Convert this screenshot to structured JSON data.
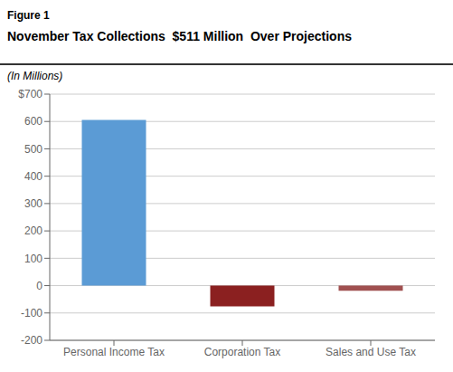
{
  "chart_data": {
    "type": "bar",
    "title": "November Tax Collections  $511 Million  Over Projections",
    "subtitle": "(In Millions)",
    "annotations": [
      "Figure 1"
    ],
    "categories": [
      "Personal Income Tax",
      "Corporation Tax",
      "Sales and Use Tax"
    ],
    "values": [
      606,
      -76,
      -19
    ],
    "colors": [
      "#5B9BD5",
      "#8B2020",
      "#A05050"
    ],
    "ylim": [
      -200,
      700
    ],
    "yticks": [
      -200,
      -100,
      0,
      100,
      200,
      300,
      400,
      500,
      600,
      {
        "value": 700,
        "label": "$700"
      }
    ],
    "grid": true
  }
}
